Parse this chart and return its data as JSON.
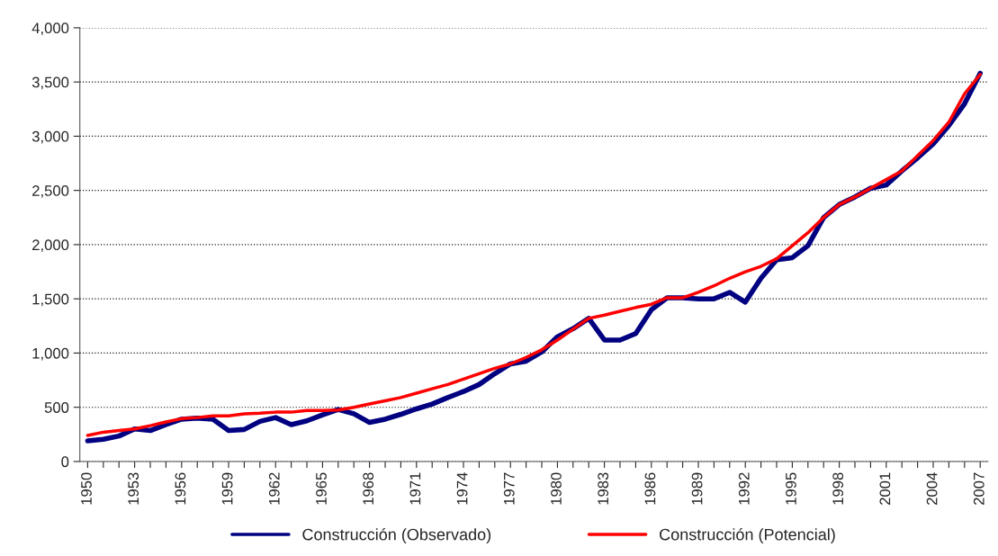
{
  "chart_data": {
    "type": "line",
    "categories": [
      "1950",
      null,
      null,
      "1953",
      null,
      null,
      "1956",
      null,
      null,
      "1959",
      null,
      null,
      "1962",
      null,
      null,
      "1965",
      null,
      null,
      "1968",
      null,
      null,
      "1971",
      null,
      null,
      "1974",
      null,
      null,
      "1977",
      null,
      null,
      "1980",
      null,
      null,
      "1983",
      null,
      null,
      "1986",
      null,
      null,
      "1989",
      null,
      null,
      "1992",
      null,
      null,
      "1995",
      null,
      null,
      "1998",
      null,
      null,
      "2001",
      null,
      null,
      "2004",
      null,
      null,
      "2007"
    ],
    "series": [
      {
        "name": "Construcción (Observado)",
        "color": "#000080",
        "values": [
          190,
          205,
          235,
          300,
          285,
          340,
          390,
          400,
          390,
          285,
          295,
          370,
          405,
          340,
          375,
          430,
          480,
          440,
          360,
          390,
          435,
          485,
          530,
          590,
          645,
          710,
          810,
          900,
          925,
          1010,
          1150,
          1225,
          1320,
          1120,
          1120,
          1180,
          1400,
          1510,
          1510,
          1500,
          1500,
          1560,
          1470,
          1690,
          1860,
          1880,
          1990,
          2250,
          2370,
          2440,
          2520,
          2550,
          2680,
          2800,
          2930,
          3100,
          3300,
          3580
        ]
      },
      {
        "name": "Construcción (Potencial)",
        "color": "#ff0000",
        "values": [
          240,
          270,
          285,
          300,
          330,
          365,
          395,
          405,
          420,
          420,
          440,
          445,
          455,
          455,
          470,
          470,
          475,
          500,
          530,
          560,
          590,
          630,
          670,
          710,
          760,
          810,
          860,
          900,
          960,
          1030,
          1120,
          1220,
          1320,
          1350,
          1385,
          1420,
          1450,
          1510,
          1510,
          1560,
          1620,
          1690,
          1750,
          1800,
          1870,
          1990,
          2110,
          2250,
          2370,
          2440,
          2520,
          2600,
          2680,
          2820,
          2960,
          3130,
          3390,
          3570
        ]
      }
    ],
    "ylim": [
      0,
      4000
    ],
    "yticks": [
      {
        "value": 0,
        "label": "0"
      },
      {
        "value": 500,
        "label": "500"
      },
      {
        "value": 1000,
        "label": "1,000"
      },
      {
        "value": 1500,
        "label": "1,500"
      },
      {
        "value": 2000,
        "label": "2,000"
      },
      {
        "value": 2500,
        "label": "2,500"
      },
      {
        "value": 3000,
        "label": "3,000"
      },
      {
        "value": 3500,
        "label": "3,500"
      },
      {
        "value": 4000,
        "label": "4,000"
      }
    ],
    "grid": "y",
    "legend": "bottom",
    "marker": "none",
    "line_style": "solid"
  }
}
